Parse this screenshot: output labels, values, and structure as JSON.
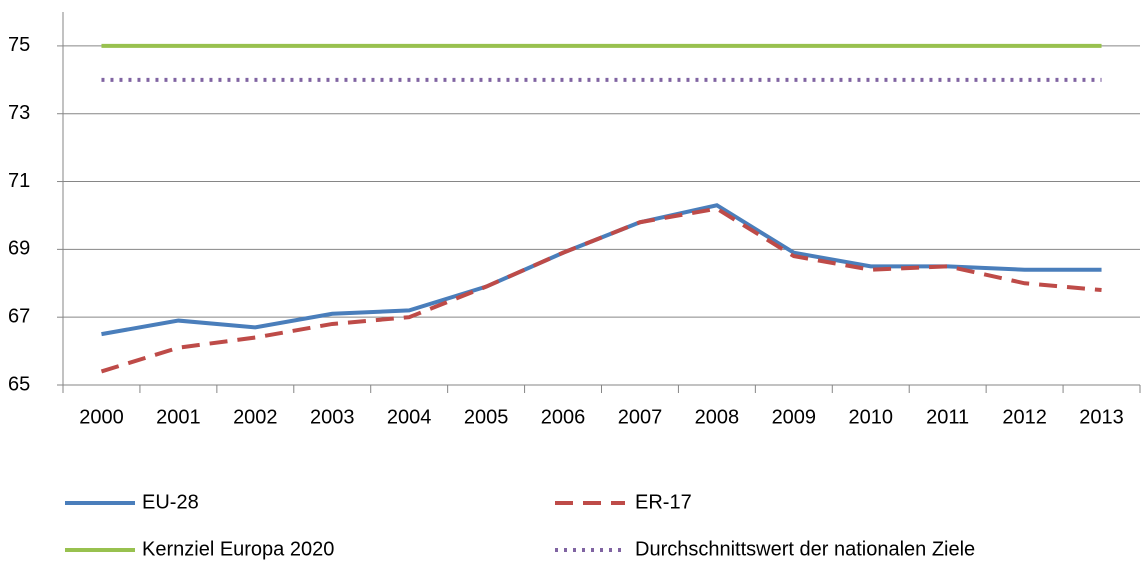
{
  "chart_data": {
    "type": "line",
    "categories": [
      "2000",
      "2001",
      "2002",
      "2003",
      "2004",
      "2005",
      "2006",
      "2007",
      "2008",
      "2009",
      "2010",
      "2011",
      "2012",
      "2013"
    ],
    "series": [
      {
        "name": "EU-28",
        "color": "#4a7ebb",
        "style": "solid",
        "values": [
          66.5,
          66.9,
          66.7,
          67.1,
          67.2,
          67.9,
          68.9,
          69.8,
          70.3,
          68.9,
          68.5,
          68.5,
          68.4,
          68.4
        ]
      },
      {
        "name": "ER-17",
        "color": "#be4b48",
        "style": "dashed",
        "values": [
          65.4,
          66.1,
          66.4,
          66.8,
          67.0,
          67.9,
          68.9,
          69.8,
          70.2,
          68.8,
          68.4,
          68.5,
          68.0,
          67.8
        ]
      },
      {
        "name": "Kernziel Europa 2020",
        "color": "#98c14f",
        "style": "solid",
        "values": [
          75,
          75,
          75,
          75,
          75,
          75,
          75,
          75,
          75,
          75,
          75,
          75,
          75,
          75
        ]
      },
      {
        "name": "Durchschnittswert der nationalen Ziele",
        "color": "#8064a2",
        "style": "dotted",
        "values": [
          74,
          74,
          74,
          74,
          74,
          74,
          74,
          74,
          74,
          74,
          74,
          74,
          74,
          74
        ]
      }
    ],
    "ylim": [
      65,
      76
    ],
    "yticks": [
      65,
      67,
      69,
      71,
      73,
      75
    ],
    "grid": true
  }
}
